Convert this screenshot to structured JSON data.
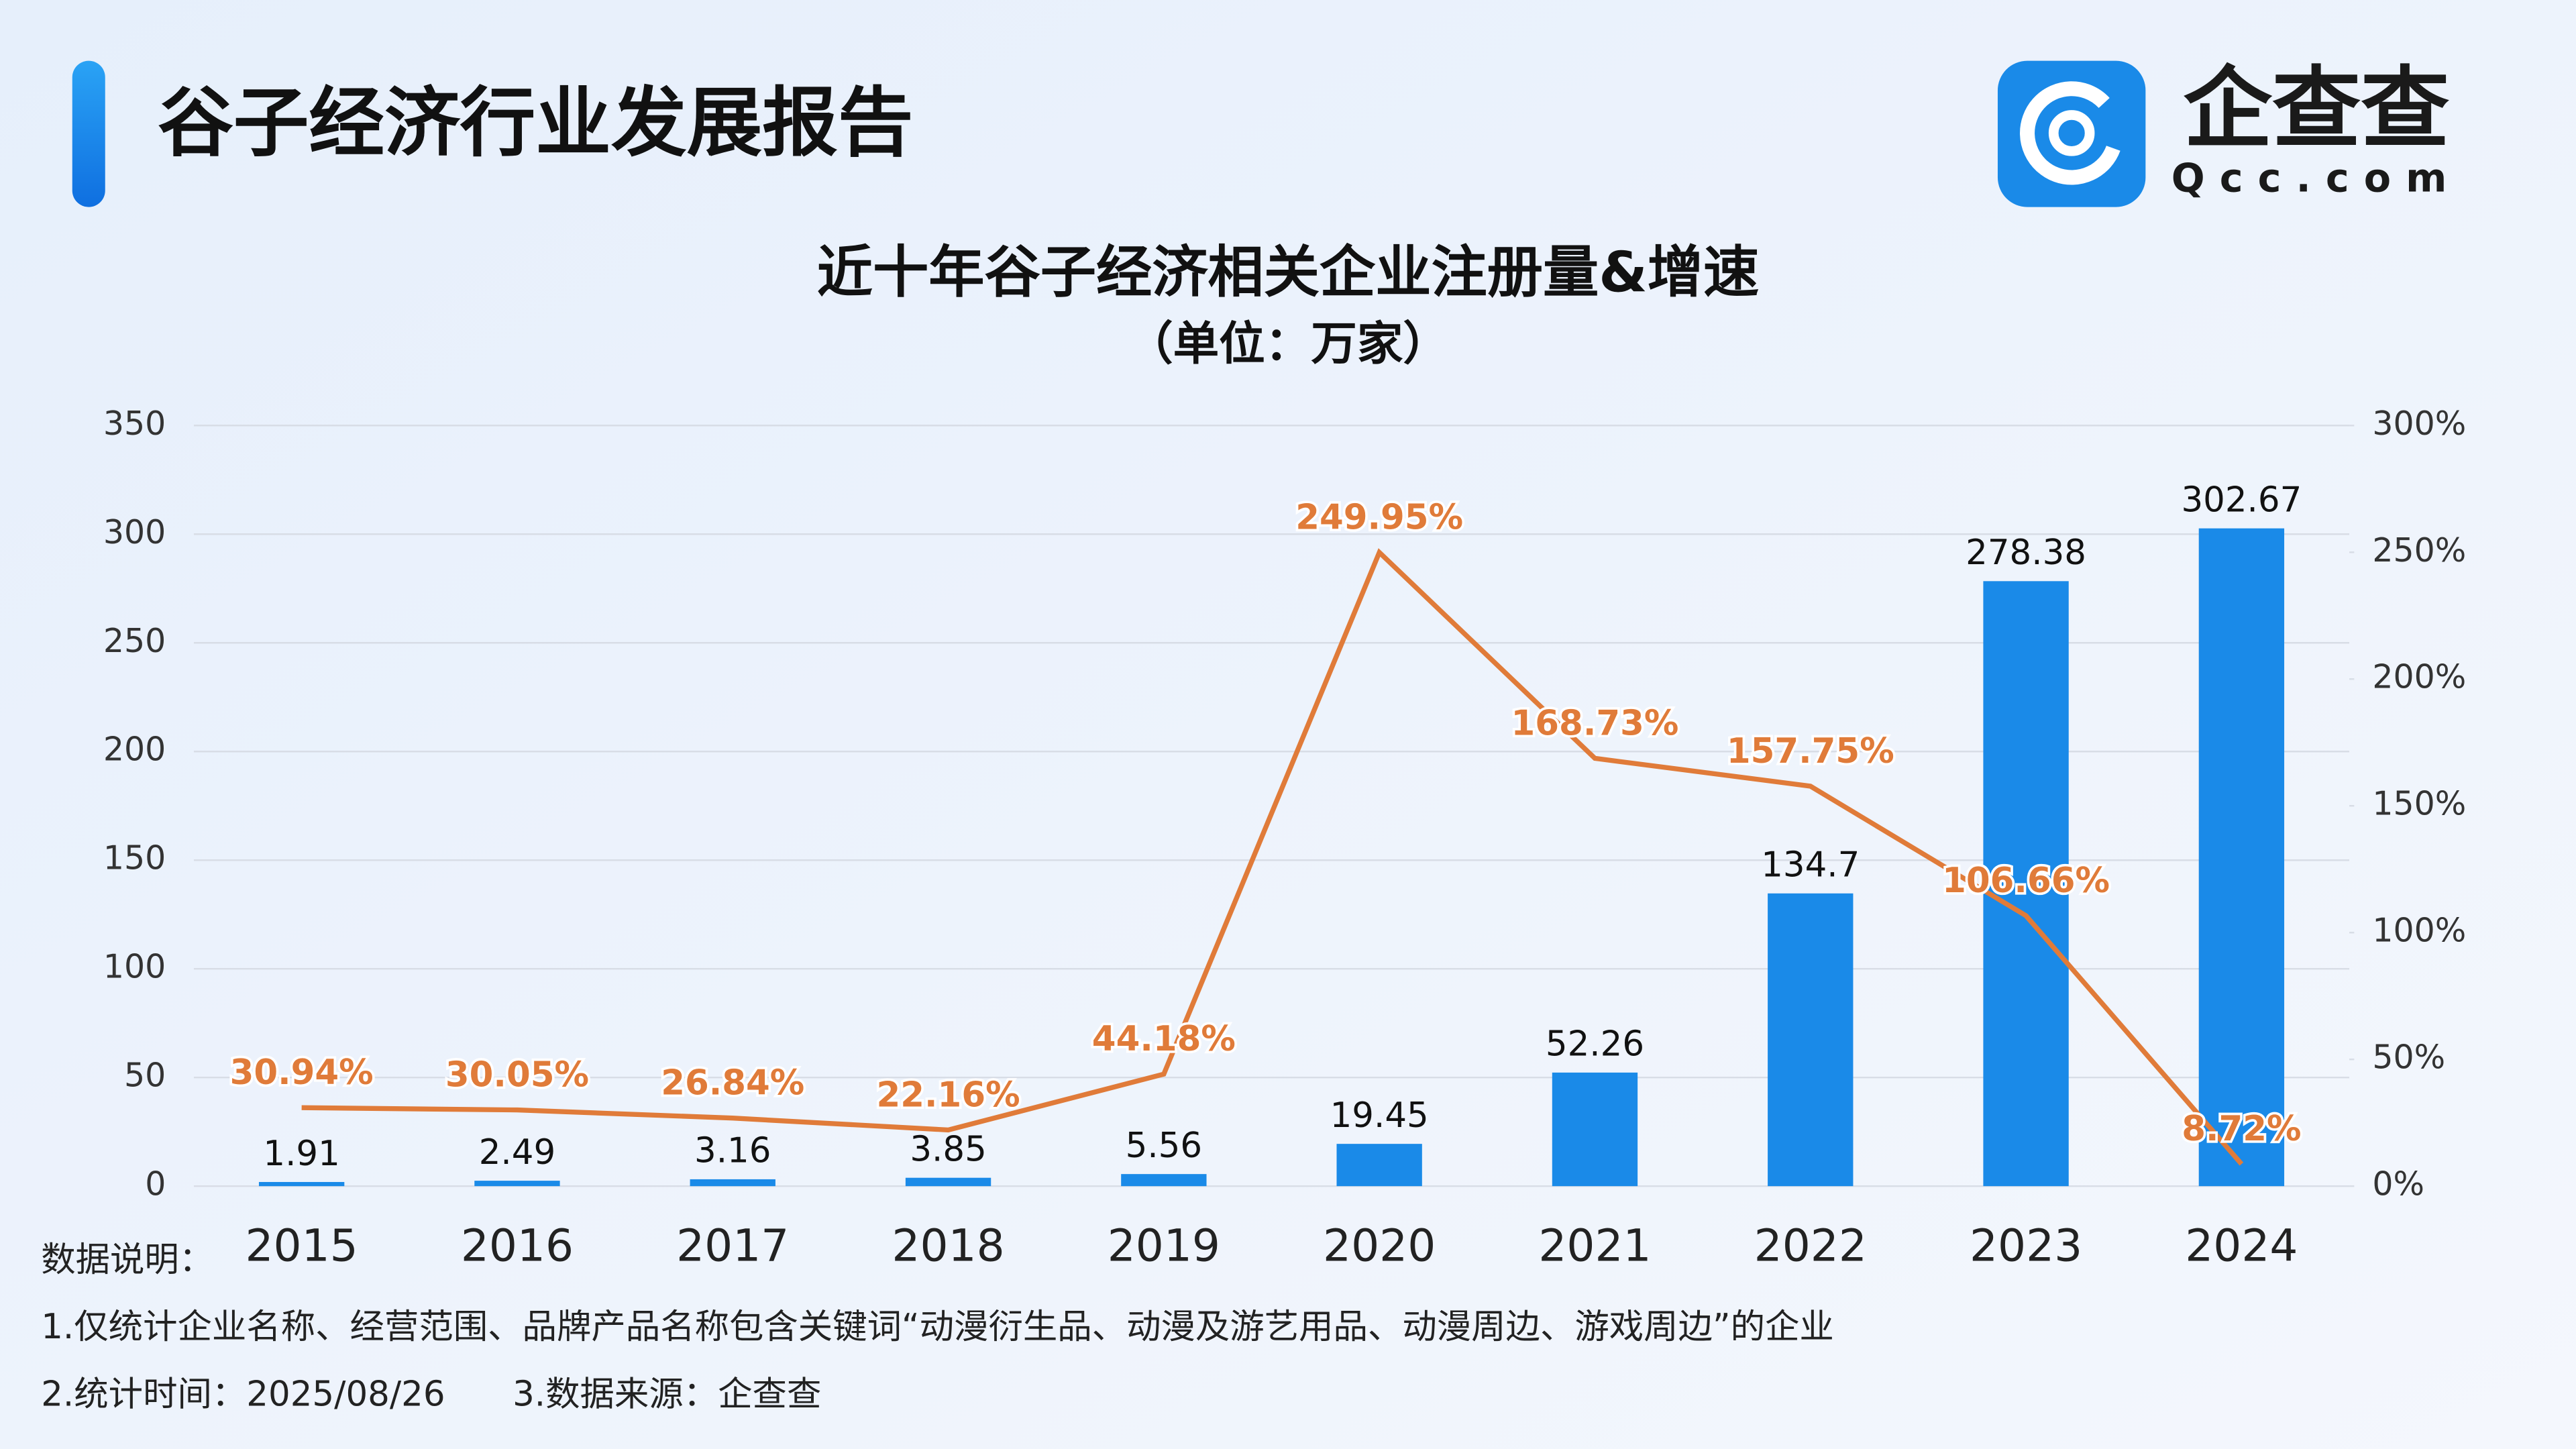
{
  "header": {
    "title": "谷子经济行业发展报告",
    "logo_text": "企查查",
    "logo_domain": "Qcc.com"
  },
  "chart_data": {
    "type": "bar_line",
    "title": "近十年谷子经济相关企业注册量&增速",
    "subtitle": "（单位：万家）",
    "categories": [
      "2015",
      "2016",
      "2017",
      "2018",
      "2019",
      "2020",
      "2021",
      "2022",
      "2023",
      "2024"
    ],
    "series": [
      {
        "type": "bar",
        "color": "#1a8ae8",
        "values": [
          1.91,
          2.49,
          3.16,
          3.85,
          5.56,
          19.45,
          52.26,
          134.7,
          278.38,
          302.67
        ]
      },
      {
        "type": "line",
        "axis": "y2",
        "color": "#e07b39",
        "values": [
          30.94,
          30.05,
          26.84,
          22.16,
          44.18,
          249.95,
          168.73,
          157.75,
          106.66,
          8.72
        ],
        "value_labels": [
          "30.94%",
          "30.05%",
          "26.84%",
          "22.16%",
          "44.18%",
          "249.95%",
          "168.73%",
          "157.75%",
          "106.66%",
          "8.72%"
        ]
      }
    ],
    "ylim": [
      0,
      350
    ],
    "yticks": [
      0,
      50,
      100,
      150,
      200,
      250,
      300,
      350
    ],
    "y2lim": [
      0,
      300
    ],
    "y2ticks": [
      {
        "value": 0,
        "label": "0%"
      },
      {
        "value": 50,
        "label": "50%"
      },
      {
        "value": 100,
        "label": "100%"
      },
      {
        "value": 150,
        "label": "150%"
      },
      {
        "value": 200,
        "label": "200%"
      },
      {
        "value": 250,
        "label": "250%"
      },
      {
        "value": 300,
        "label": "300%"
      }
    ],
    "grid": true
  },
  "notes": {
    "heading": "数据说明：",
    "line1": "1.仅统计企业名称、经营范围、品牌产品名称包含关键词“动漫衍生品、动漫及游艺用品、动漫周边、游戏周边”的企业",
    "line2a": "2.统计时间：2025/08/26",
    "line2b": "3.数据来源：企查查"
  }
}
